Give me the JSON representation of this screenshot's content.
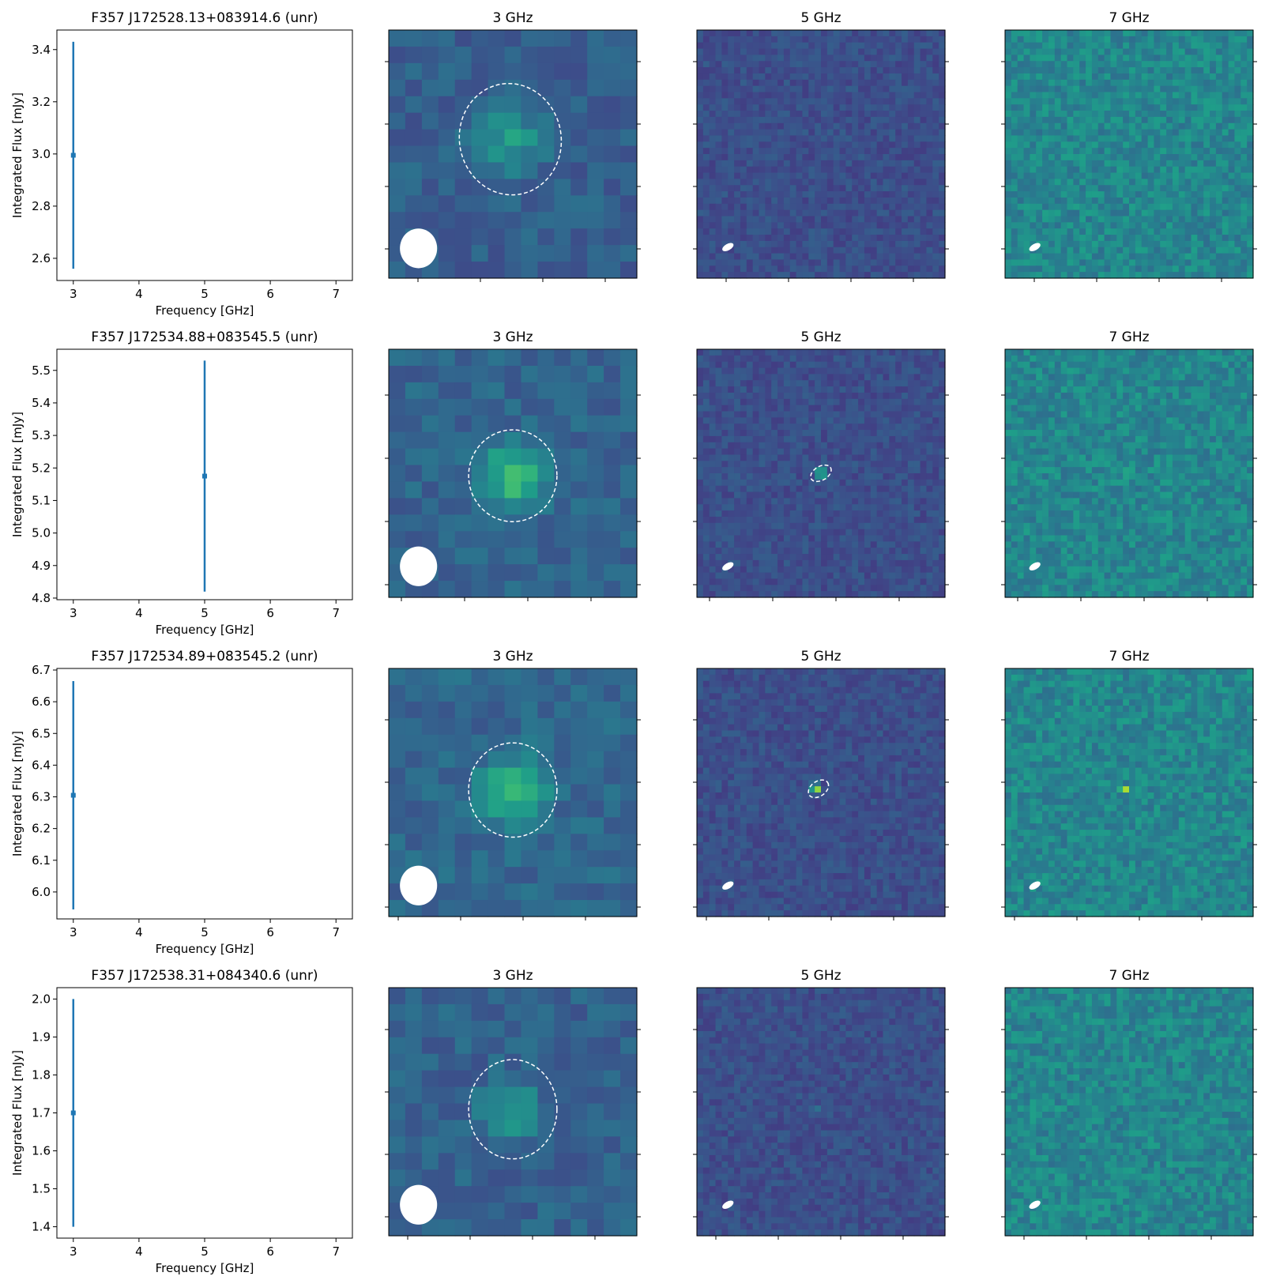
{
  "colors": {
    "errorbar": "#1f77b4",
    "colormap": "viridis",
    "beam": "#ffffff",
    "source_ellipse": "#ffffff"
  },
  "chart_data": [
    {
      "type": "scatter",
      "title": "F357 J172528.13+083914.6 (unr)",
      "xlabel": "Frequency [GHz]",
      "ylabel": "Integrated Flux [mJy]",
      "xlim": [
        2.75,
        7.25
      ],
      "ylim": [
        2.515,
        3.475
      ],
      "xticks": [
        3,
        4,
        5,
        6,
        7
      ],
      "yticks": [
        2.6,
        2.8,
        3.0,
        3.2,
        3.4
      ],
      "ytick_decimals": 1,
      "points": [
        {
          "x": 3,
          "y": 2.995,
          "yerr": 0.435
        }
      ],
      "images": [
        {
          "title": "3 GHz",
          "grid": 15,
          "base": 0.3,
          "noise": 0.07,
          "source": {
            "x": 0.49,
            "y": 0.44,
            "sigma": 0.085,
            "amp": 0.26
          },
          "ellipse": {
            "x": 0.49,
            "y": 0.44,
            "rx": 0.205,
            "ry": 0.225,
            "angle": -10
          },
          "beam": {
            "x": 0.12,
            "y": 0.88,
            "rx": 0.075,
            "ry": 0.08,
            "angle": 0
          }
        },
        {
          "title": "5 GHz",
          "grid": 40,
          "base": 0.24,
          "noise": 0.06,
          "beam": {
            "x": 0.125,
            "y": 0.875,
            "rx": 0.025,
            "ry": 0.013,
            "angle": -30
          }
        },
        {
          "title": "7 GHz",
          "grid": 40,
          "base": 0.46,
          "noise": 0.1,
          "beam": {
            "x": 0.12,
            "y": 0.875,
            "rx": 0.025,
            "ry": 0.013,
            "angle": -30
          }
        }
      ]
    },
    {
      "type": "scatter",
      "title": "F357 J172534.88+083545.5 (unr)",
      "xlabel": "Frequency [GHz]",
      "ylabel": "Integrated Flux [mJy]",
      "xlim": [
        2.75,
        7.25
      ],
      "ylim": [
        4.795,
        5.565
      ],
      "xticks": [
        3,
        4,
        5,
        6,
        7
      ],
      "yticks": [
        4.8,
        4.9,
        5.0,
        5.1,
        5.2,
        5.3,
        5.4,
        5.5
      ],
      "ytick_decimals": 1,
      "points": [
        {
          "x": 5,
          "y": 5.175,
          "yerr": 0.355
        }
      ],
      "images": [
        {
          "title": "3 GHz",
          "grid": 15,
          "base": 0.32,
          "noise": 0.07,
          "source": {
            "x": 0.5,
            "y": 0.51,
            "sigma": 0.085,
            "amp": 0.38
          },
          "ellipse": {
            "x": 0.5,
            "y": 0.51,
            "rx": 0.178,
            "ry": 0.185,
            "angle": 0
          },
          "beam": {
            "x": 0.12,
            "y": 0.875,
            "rx": 0.075,
            "ry": 0.08,
            "angle": 0
          }
        },
        {
          "title": "5 GHz",
          "grid": 40,
          "base": 0.24,
          "noise": 0.06,
          "source": {
            "x": 0.5,
            "y": 0.5,
            "sigma": 0.012,
            "amp": 0.7
          },
          "ellipse": {
            "x": 0.5,
            "y": 0.5,
            "rx": 0.045,
            "ry": 0.028,
            "angle": -30
          },
          "beam": {
            "x": 0.125,
            "y": 0.875,
            "rx": 0.025,
            "ry": 0.013,
            "angle": -30
          }
        },
        {
          "title": "7 GHz",
          "grid": 40,
          "base": 0.46,
          "noise": 0.1,
          "source": {
            "x": 0.49,
            "y": 0.5,
            "sigma": 0.01,
            "amp": 0.45
          },
          "beam": {
            "x": 0.12,
            "y": 0.875,
            "rx": 0.025,
            "ry": 0.013,
            "angle": -30
          }
        }
      ]
    },
    {
      "type": "scatter",
      "title": "F357 J172534.89+083545.2 (unr)",
      "xlabel": "Frequency [GHz]",
      "ylabel": "Integrated Flux [mJy]",
      "xlim": [
        2.75,
        7.25
      ],
      "ylim": [
        5.915,
        6.705
      ],
      "xticks": [
        3,
        4,
        5,
        6,
        7
      ],
      "yticks": [
        6.0,
        6.1,
        6.2,
        6.3,
        6.4,
        6.5,
        6.6,
        6.7
      ],
      "ytick_decimals": 1,
      "points": [
        {
          "x": 3,
          "y": 6.305,
          "yerr": 0.36
        }
      ],
      "images": [
        {
          "title": "3 GHz",
          "grid": 15,
          "base": 0.33,
          "noise": 0.07,
          "source": {
            "x": 0.5,
            "y": 0.49,
            "sigma": 0.085,
            "amp": 0.4
          },
          "ellipse": {
            "x": 0.5,
            "y": 0.49,
            "rx": 0.178,
            "ry": 0.19,
            "angle": 0
          },
          "beam": {
            "x": 0.12,
            "y": 0.875,
            "rx": 0.075,
            "ry": 0.08,
            "angle": 0
          }
        },
        {
          "title": "5 GHz",
          "grid": 40,
          "base": 0.24,
          "noise": 0.06,
          "source": {
            "x": 0.48,
            "y": 0.485,
            "sigma": 0.012,
            "amp": 0.7
          },
          "ellipse": {
            "x": 0.49,
            "y": 0.485,
            "rx": 0.045,
            "ry": 0.03,
            "angle": -35
          },
          "beam": {
            "x": 0.125,
            "y": 0.875,
            "rx": 0.025,
            "ry": 0.013,
            "angle": -30
          }
        },
        {
          "title": "7 GHz",
          "grid": 40,
          "base": 0.46,
          "noise": 0.1,
          "source": {
            "x": 0.48,
            "y": 0.49,
            "sigma": 0.01,
            "amp": 0.45
          },
          "beam": {
            "x": 0.12,
            "y": 0.875,
            "rx": 0.025,
            "ry": 0.013,
            "angle": -30
          }
        }
      ]
    },
    {
      "type": "scatter",
      "title": "F357 J172538.31+084340.6 (unr)",
      "xlabel": "Frequency [GHz]",
      "ylabel": "Integrated Flux [mJy]",
      "xlim": [
        2.75,
        7.25
      ],
      "ylim": [
        1.37,
        2.03
      ],
      "xticks": [
        3,
        4,
        5,
        6,
        7
      ],
      "yticks": [
        1.4,
        1.5,
        1.6,
        1.7,
        1.8,
        1.9,
        2.0
      ],
      "ytick_decimals": 1,
      "points": [
        {
          "x": 3,
          "y": 1.7,
          "yerr": 0.3
        }
      ],
      "images": [
        {
          "title": "3 GHz",
          "grid": 15,
          "base": 0.31,
          "noise": 0.07,
          "source": {
            "x": 0.49,
            "y": 0.49,
            "sigma": 0.08,
            "amp": 0.24
          },
          "ellipse": {
            "x": 0.5,
            "y": 0.49,
            "rx": 0.178,
            "ry": 0.2,
            "angle": 0
          },
          "beam": {
            "x": 0.12,
            "y": 0.875,
            "rx": 0.075,
            "ry": 0.08,
            "angle": 0
          }
        },
        {
          "title": "5 GHz",
          "grid": 40,
          "base": 0.24,
          "noise": 0.06,
          "source": {
            "x": 0.48,
            "y": 0.49,
            "sigma": 0.01,
            "amp": 0.15
          },
          "beam": {
            "x": 0.125,
            "y": 0.875,
            "rx": 0.025,
            "ry": 0.013,
            "angle": -30
          }
        },
        {
          "title": "7 GHz",
          "grid": 40,
          "base": 0.46,
          "noise": 0.1,
          "beam": {
            "x": 0.12,
            "y": 0.875,
            "rx": 0.025,
            "ry": 0.013,
            "angle": -30
          }
        }
      ]
    }
  ]
}
